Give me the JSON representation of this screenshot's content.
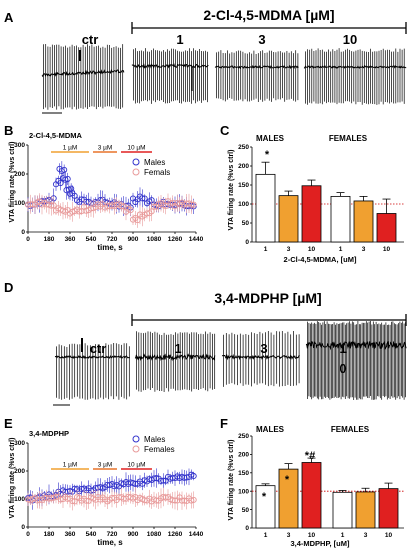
{
  "panels": {
    "A": {
      "letter": "A",
      "drug_header": "2-Cl-4,5-MDMA [µM]",
      "conditions": [
        "ctr",
        "1",
        "3",
        "10"
      ]
    },
    "B": {
      "letter": "B",
      "drug": "2-Cl-4,5-MDMA",
      "ylabel": "VTA firing rate (%vs ctrl)",
      "xlabel": "time, s",
      "legend": [
        "Males",
        "Femals"
      ],
      "dose_labels": [
        "1 µM",
        "3 µM",
        "10 µM"
      ]
    },
    "C": {
      "letter": "C",
      "group_labels": [
        "MALES",
        "FEMALES"
      ],
      "ylabel": "VTA firing rate (%vs ctrl)",
      "xlabel": "2-Cl-4,5-MDMA, [uM]",
      "annotations": [
        "*"
      ]
    },
    "D": {
      "letter": "D",
      "drug_header": "3,4-MDPHP  [µM]",
      "conditions": [
        "ctr",
        "1",
        "3",
        "1",
        "0"
      ]
    },
    "E": {
      "letter": "E",
      "drug": "3,4-MDPHP",
      "ylabel": "VTA firing rate (%vs ctrl)",
      "xlabel": "time, s",
      "legend": [
        "Males",
        "Females"
      ],
      "dose_labels": [
        "1 µM",
        "3 µM",
        "10 µM"
      ]
    },
    "F": {
      "letter": "F",
      "group_labels": [
        "MALES",
        "FEMALES"
      ],
      "ylabel": "VTA firing rate (%vs ctrl)",
      "xlabel": "3,4-MDPHP, [uM]",
      "annotations": [
        "*",
        "*",
        "*#"
      ]
    }
  },
  "colors": {
    "male": "#3333cc",
    "female": "#e89a9a",
    "dose1": "#f0a030",
    "dose3": "#e8732a",
    "dose10": "#e02020",
    "ref_line": "#cc0000"
  },
  "chart_data": [
    {
      "id": "B",
      "type": "scatter",
      "xlabel": "time, s",
      "ylabel": "VTA firing rate (%vs ctrl)",
      "xlim": [
        0,
        1440
      ],
      "ylim": [
        0,
        300
      ],
      "xticks": [
        0,
        180,
        360,
        540,
        720,
        900,
        1080,
        1260,
        1440
      ],
      "yticks": [
        0,
        100,
        200,
        300
      ],
      "series": [
        {
          "name": "Males",
          "x": [
            0,
            60,
            120,
            180,
            240,
            270,
            300,
            330,
            360,
            420,
            480,
            540,
            600,
            660,
            720,
            780,
            840,
            900,
            960,
            1020,
            1080,
            1140,
            1200,
            1260,
            1320,
            1380
          ],
          "y": [
            95,
            100,
            105,
            110,
            170,
            215,
            185,
            150,
            130,
            110,
            105,
            100,
            105,
            100,
            100,
            95,
            90,
            110,
            120,
            105,
            95,
            100,
            95,
            100,
            95,
            95
          ]
        },
        {
          "name": "Femals",
          "x": [
            0,
            60,
            120,
            180,
            240,
            300,
            360,
            420,
            480,
            540,
            600,
            660,
            720,
            780,
            840,
            900,
            960,
            1020,
            1080,
            1140,
            1200,
            1260,
            1320,
            1380
          ],
          "y": [
            95,
            100,
            95,
            90,
            75,
            70,
            70,
            75,
            80,
            85,
            90,
            90,
            95,
            90,
            75,
            45,
            55,
            70,
            90,
            95,
            100,
            95,
            100,
            95
          ]
        }
      ]
    },
    {
      "id": "C",
      "type": "bar",
      "ylabel": "VTA firing rate (%vs ctrl)",
      "xlabel": "2-Cl-4,5-MDMA, [uM]",
      "ylim": [
        0,
        250
      ],
      "yticks": [
        0,
        50,
        100,
        150,
        200,
        250
      ],
      "categories": [
        "1",
        "3",
        "10"
      ],
      "series": [
        {
          "name": "MALES",
          "values": [
            178,
            122,
            148
          ],
          "errors": [
            32,
            12,
            15
          ]
        },
        {
          "name": "FEMALES",
          "values": [
            120,
            108,
            75
          ],
          "errors": [
            10,
            12,
            38
          ]
        }
      ]
    },
    {
      "id": "E",
      "type": "scatter",
      "xlabel": "time, s",
      "ylabel": "VTA firing rate (%vs ctrl)",
      "xlim": [
        0,
        1440
      ],
      "ylim": [
        0,
        300
      ],
      "xticks": [
        0,
        180,
        360,
        540,
        720,
        900,
        1080,
        1260,
        1440
      ],
      "yticks": [
        0,
        100,
        200,
        300
      ],
      "series": [
        {
          "name": "Males",
          "x": [
            0,
            60,
            120,
            180,
            240,
            300,
            360,
            420,
            480,
            540,
            600,
            660,
            720,
            780,
            840,
            900,
            960,
            1020,
            1080,
            1140,
            1200,
            1260,
            1320,
            1380
          ],
          "y": [
            100,
            105,
            110,
            115,
            120,
            125,
            130,
            130,
            135,
            135,
            140,
            145,
            150,
            150,
            155,
            160,
            160,
            165,
            170,
            170,
            175,
            180,
            180,
            185
          ]
        },
        {
          "name": "Females",
          "x": [
            0,
            60,
            120,
            180,
            240,
            300,
            360,
            420,
            480,
            540,
            600,
            660,
            720,
            780,
            840,
            900,
            960,
            1020,
            1080,
            1140,
            1200,
            1260,
            1320,
            1380
          ],
          "y": [
            100,
            100,
            98,
            100,
            102,
            100,
            98,
            100,
            100,
            102,
            100,
            98,
            100,
            100,
            102,
            100,
            100,
            98,
            100,
            102,
            100,
            100,
            98,
            100
          ]
        }
      ]
    },
    {
      "id": "F",
      "type": "bar",
      "ylabel": "VTA firing rate (%vs ctrl)",
      "xlabel": "3,4-MDPHP, [uM]",
      "ylim": [
        0,
        250
      ],
      "yticks": [
        0,
        50,
        100,
        150,
        200,
        250
      ],
      "categories": [
        "1",
        "3",
        "10"
      ],
      "series": [
        {
          "name": "MALES",
          "values": [
            115,
            160,
            178
          ],
          "errors": [
            5,
            15,
            12
          ]
        },
        {
          "name": "FEMALES",
          "values": [
            97,
            98,
            107
          ],
          "errors": [
            5,
            10,
            15
          ]
        }
      ]
    }
  ]
}
